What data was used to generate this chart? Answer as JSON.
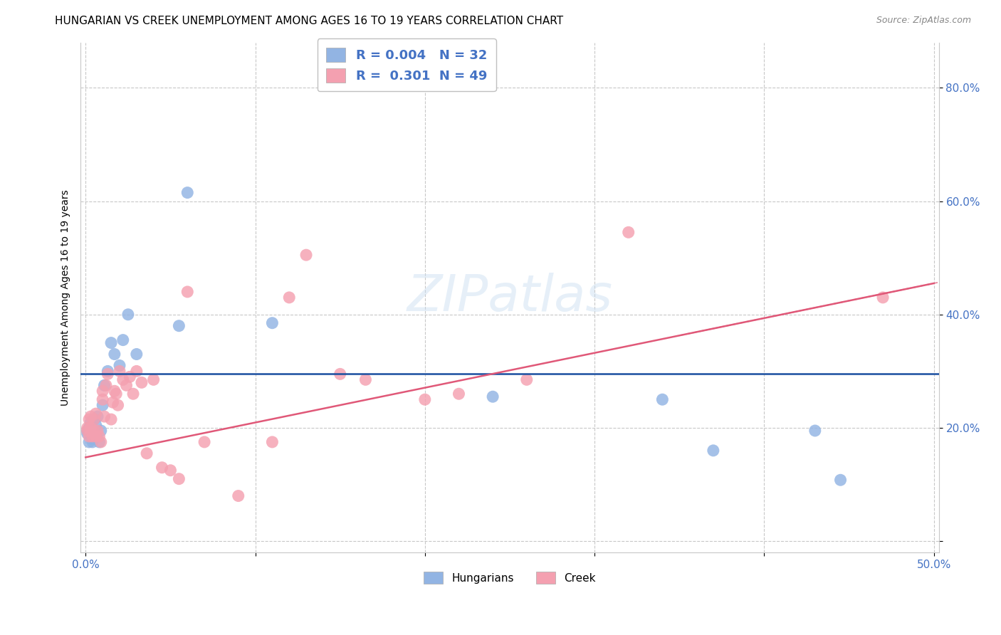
{
  "title": "HUNGARIAN VS CREEK UNEMPLOYMENT AMONG AGES 16 TO 19 YEARS CORRELATION CHART",
  "source": "Source: ZipAtlas.com",
  "ylabel": "Unemployment Among Ages 16 to 19 years",
  "xlim": [
    -0.003,
    0.503
  ],
  "ylim": [
    -0.02,
    0.88
  ],
  "xticks": [
    0.0,
    0.1,
    0.2,
    0.3,
    0.4,
    0.5
  ],
  "xticklabels": [
    "0.0%",
    "",
    "",
    "",
    "",
    "50.0%"
  ],
  "yticks": [
    0.0,
    0.2,
    0.4,
    0.6,
    0.8
  ],
  "yticklabels": [
    "",
    "20.0%",
    "40.0%",
    "60.0%",
    "80.0%"
  ],
  "legend_r1": "R = 0.004   N = 32",
  "legend_r2": "R =  0.301  N = 49",
  "blue_scatter": "#92b4e3",
  "pink_scatter": "#f4a0b0",
  "blue_line": "#1a4fa0",
  "pink_line": "#e05878",
  "text_color": "#4472c4",
  "grid_color": "#c8c8c8",
  "blue_x": [
    0.001,
    0.001,
    0.002,
    0.002,
    0.003,
    0.003,
    0.004,
    0.004,
    0.005,
    0.005,
    0.006,
    0.006,
    0.007,
    0.008,
    0.009,
    0.01,
    0.011,
    0.013,
    0.015,
    0.017,
    0.02,
    0.022,
    0.025,
    0.03,
    0.055,
    0.06,
    0.11,
    0.24,
    0.34,
    0.37,
    0.43,
    0.445
  ],
  "blue_y": [
    0.19,
    0.195,
    0.175,
    0.2,
    0.19,
    0.21,
    0.18,
    0.175,
    0.195,
    0.215,
    0.205,
    0.185,
    0.22,
    0.175,
    0.195,
    0.24,
    0.275,
    0.3,
    0.35,
    0.33,
    0.31,
    0.355,
    0.4,
    0.33,
    0.38,
    0.615,
    0.385,
    0.255,
    0.25,
    0.16,
    0.195,
    0.108
  ],
  "pink_x": [
    0.001,
    0.001,
    0.002,
    0.002,
    0.003,
    0.003,
    0.004,
    0.005,
    0.005,
    0.006,
    0.006,
    0.007,
    0.008,
    0.009,
    0.01,
    0.01,
    0.011,
    0.012,
    0.013,
    0.015,
    0.016,
    0.017,
    0.018,
    0.019,
    0.02,
    0.022,
    0.024,
    0.026,
    0.028,
    0.03,
    0.033,
    0.036,
    0.04,
    0.045,
    0.05,
    0.055,
    0.06,
    0.07,
    0.09,
    0.11,
    0.12,
    0.13,
    0.15,
    0.165,
    0.2,
    0.22,
    0.26,
    0.32,
    0.47
  ],
  "pink_y": [
    0.195,
    0.2,
    0.185,
    0.215,
    0.2,
    0.22,
    0.185,
    0.195,
    0.215,
    0.185,
    0.225,
    0.195,
    0.185,
    0.175,
    0.25,
    0.265,
    0.22,
    0.275,
    0.295,
    0.215,
    0.245,
    0.265,
    0.26,
    0.24,
    0.3,
    0.285,
    0.275,
    0.29,
    0.26,
    0.3,
    0.28,
    0.155,
    0.285,
    0.13,
    0.125,
    0.11,
    0.44,
    0.175,
    0.08,
    0.175,
    0.43,
    0.505,
    0.295,
    0.285,
    0.25,
    0.26,
    0.285,
    0.545,
    0.43
  ],
  "blue_line_y": 0.295,
  "pink_line_x0": 0.0,
  "pink_line_y0": 0.148,
  "pink_line_x1": 0.5,
  "pink_line_y1": 0.455
}
